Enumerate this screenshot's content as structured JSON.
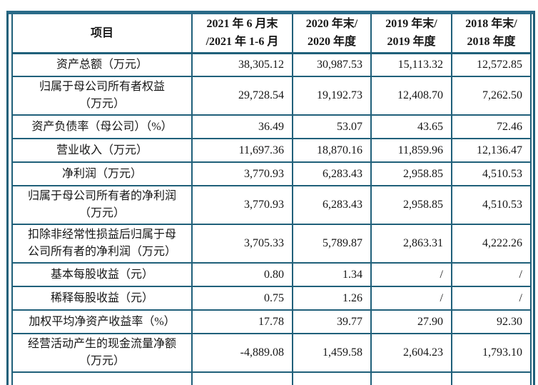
{
  "colors": {
    "border": "#20607a",
    "top_border": "#2a6b88",
    "text": "#161616",
    "background": "#ffffff"
  },
  "table": {
    "columns": [
      "项目",
      "2021 年 6 月末\n/2021 年 1-6 月",
      "2020 年末/\n2020 年度",
      "2019 年末/\n2019 年度",
      "2018 年末/\n2018 年度"
    ],
    "rows": [
      {
        "label": "资产总额（万元）",
        "values": [
          "38,305.12",
          "30,987.53",
          "15,113.32",
          "12,572.85"
        ]
      },
      {
        "label": "归属于母公司所有者权益\n（万元）",
        "values": [
          "29,728.54",
          "19,192.73",
          "12,408.70",
          "7,262.50"
        ]
      },
      {
        "label": "资产负债率（母公司）（%）",
        "values": [
          "36.49",
          "53.07",
          "43.65",
          "72.46"
        ]
      },
      {
        "label": "营业收入（万元）",
        "values": [
          "11,697.36",
          "18,870.16",
          "11,859.96",
          "12,136.47"
        ]
      },
      {
        "label": "净利润（万元）",
        "values": [
          "3,770.93",
          "6,283.43",
          "2,958.85",
          "4,510.53"
        ]
      },
      {
        "label": "归属于母公司所有者的净利润\n（万元）",
        "values": [
          "3,770.93",
          "6,283.43",
          "2,958.85",
          "4,510.53"
        ]
      },
      {
        "label": "扣除非经常性损益后归属于母\n公司所有者的净利润（万元）",
        "values": [
          "3,705.33",
          "5,789.87",
          "2,863.31",
          "4,222.26"
        ]
      },
      {
        "label": "基本每股收益（元）",
        "values": [
          "0.80",
          "1.34",
          "/",
          "/"
        ]
      },
      {
        "label": "稀释每股收益（元）",
        "values": [
          "0.75",
          "1.26",
          "/",
          "/"
        ]
      },
      {
        "label": "加权平均净资产收益率（%）",
        "values": [
          "17.78",
          "39.77",
          "27.90",
          "92.30"
        ]
      },
      {
        "label": "经营活动产生的现金流量净额\n（万元）",
        "values": [
          "-4,889.08",
          "1,459.58",
          "2,604.23",
          "1,793.10"
        ]
      }
    ],
    "partial_next_row_visible": true
  }
}
